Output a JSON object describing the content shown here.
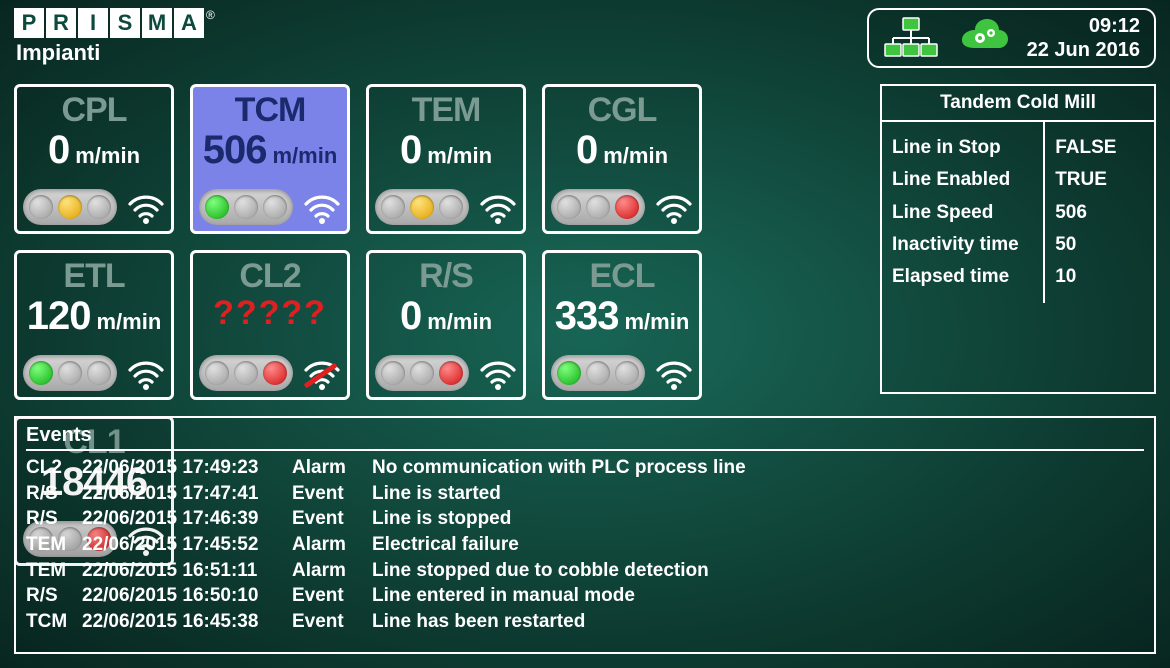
{
  "logo": {
    "letters": [
      "P",
      "R",
      "I",
      "S",
      "M",
      "A"
    ],
    "sub": "Impianti"
  },
  "clock": {
    "time": "09:12",
    "date": "22 Jun 2016"
  },
  "colors": {
    "bg_center": "#1a6b5a",
    "bg_edge": "#082620",
    "tile_selected_bg": "#7b83e8",
    "tile_name_dim": "#7a9a92",
    "tile_name_sel": "#1a2a6d",
    "err_red": "#e02020",
    "green": "#0faa0f",
    "yellow": "#e0a000",
    "red": "#d01010",
    "cloud": "#3ec43e"
  },
  "tiles": [
    {
      "id": "CPL",
      "name": "CPL",
      "value": "0",
      "unit": "m/min",
      "selected": false,
      "lights": [
        "off",
        "y",
        "off"
      ],
      "wifi": true
    },
    {
      "id": "TCM",
      "name": "TCM",
      "value": "506",
      "unit": "m/min",
      "selected": true,
      "lights": [
        "g",
        "off",
        "off"
      ],
      "wifi": true
    },
    {
      "id": "TEM",
      "name": "TEM",
      "value": "0",
      "unit": "m/min",
      "selected": false,
      "lights": [
        "off",
        "y",
        "off"
      ],
      "wifi": true
    },
    {
      "id": "CGL",
      "name": "CGL",
      "value": "0",
      "unit": "m/min",
      "selected": false,
      "lights": [
        "off",
        "off",
        "r"
      ],
      "wifi": true
    },
    {
      "id": "ETL",
      "name": "ETL",
      "value": "120",
      "unit": "m/min",
      "selected": false,
      "lights": [
        "g",
        "off",
        "off"
      ],
      "wifi": true
    },
    {
      "id": "CL2",
      "name": "CL2",
      "value": "?????",
      "unit": "",
      "selected": false,
      "error": true,
      "lights": [
        "off",
        "off",
        "r"
      ],
      "wifi": false
    },
    {
      "id": "RS",
      "name": "R/S",
      "value": "0",
      "unit": "m/min",
      "selected": false,
      "lights": [
        "off",
        "off",
        "r"
      ],
      "wifi": true
    },
    {
      "id": "ECL",
      "name": "ECL",
      "value": "333",
      "unit": "m/min",
      "selected": false,
      "lights": [
        "g",
        "off",
        "off"
      ],
      "wifi": true
    },
    {
      "id": "CL1",
      "name": "CL1",
      "value": "18446",
      "unit": "",
      "selected": false,
      "lights": [
        "off",
        "off",
        "r"
      ],
      "wifi": true
    }
  ],
  "detail": {
    "title": "Tandem Cold Mill",
    "rows": [
      {
        "label": "Line in Stop",
        "value": "FALSE"
      },
      {
        "label": "Line Enabled",
        "value": "TRUE"
      },
      {
        "label": "Line Speed",
        "value": "506"
      },
      {
        "label": "Inactivity time",
        "value": "50"
      },
      {
        "label": "Elapsed time",
        "value": "10"
      }
    ]
  },
  "events": {
    "title": "Events",
    "rows": [
      {
        "line": "CL2",
        "ts": "22/06/2015 17:49:23",
        "type": "Alarm",
        "msg": "No communication with PLC process line"
      },
      {
        "line": "R/S",
        "ts": "22/06/2015 17:47:41",
        "type": "Event",
        "msg": "Line is started"
      },
      {
        "line": "R/S",
        "ts": "22/06/2015 17:46:39",
        "type": "Event",
        "msg": "Line is stopped"
      },
      {
        "line": "TEM",
        "ts": "22/06/2015 17:45:52",
        "type": "Alarm",
        "msg": "Electrical failure"
      },
      {
        "line": "TEM",
        "ts": "22/06/2015 16:51:11",
        "type": "Alarm",
        "msg": "Line stopped due to cobble detection"
      },
      {
        "line": "R/S",
        "ts": "22/06/2015 16:50:10",
        "type": "Event",
        "msg": "Line entered in manual mode"
      },
      {
        "line": "TCM",
        "ts": "22/06/2015 16:45:38",
        "type": "Event",
        "msg": "Line has been restarted"
      }
    ]
  }
}
